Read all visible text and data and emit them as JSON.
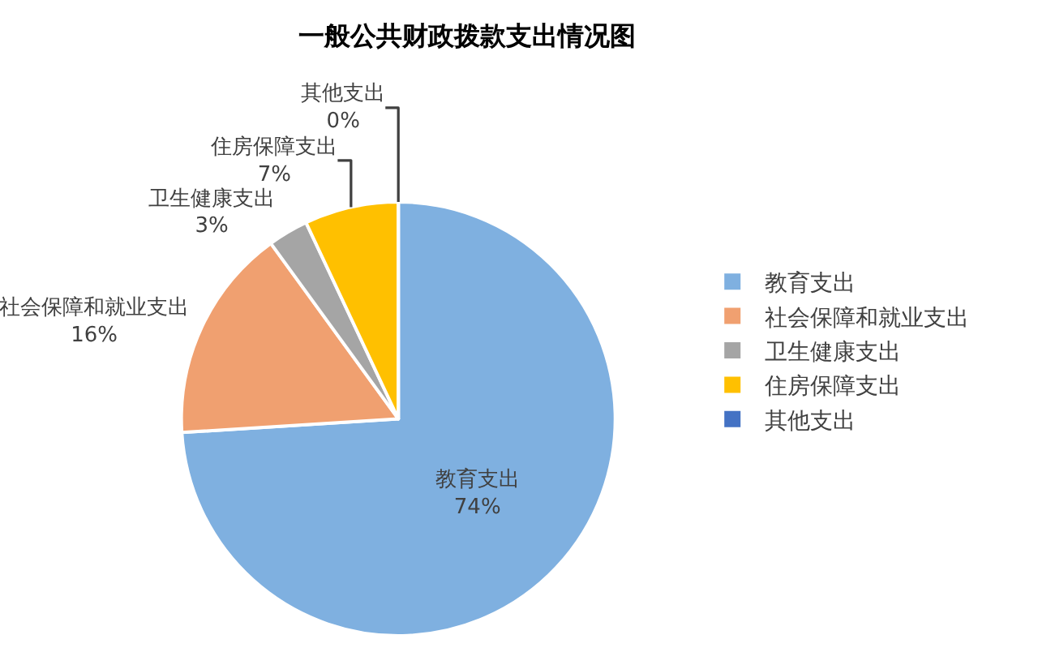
{
  "chart_data": {
    "type": "pie",
    "title": "一般公共财政拨款支出情况图",
    "categories": [
      "教育支出",
      "社会保障和就业支出",
      "卫生健康支出",
      "住房保障支出",
      "其他支出"
    ],
    "values": [
      74,
      16,
      3,
      7,
      0
    ],
    "value_labels": [
      "74%",
      "16%",
      "3%",
      "7%",
      "0%"
    ],
    "colors": [
      "#7fb0e0",
      "#f0a070",
      "#a5a5a5",
      "#ffc000",
      "#4472c4"
    ],
    "legend": "right"
  }
}
